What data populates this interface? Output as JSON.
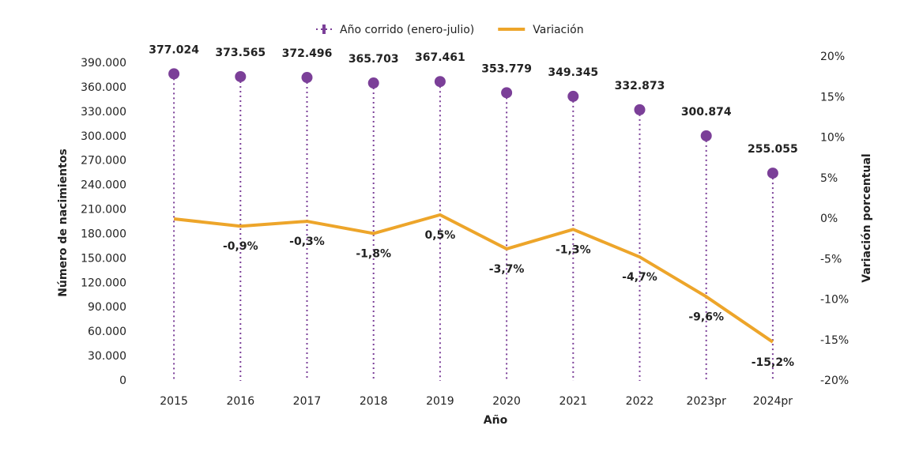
{
  "chart_data": {
    "type": "combo",
    "x_label": "Año",
    "y_label": "Número de nacimientos",
    "y2_label": "Variación porcentual",
    "legend": "top",
    "categories": [
      "2015",
      "2016",
      "2017",
      "2018",
      "2019",
      "2020",
      "2021",
      "2022",
      "2023pr",
      "2024pr"
    ],
    "series": [
      {
        "name": "Año corrido (enero-julio)",
        "type": "lollipop",
        "color": "#7b3f98",
        "values": [
          377024,
          373565,
          372496,
          365703,
          367461,
          353779,
          349345,
          332873,
          300874,
          255055
        ],
        "value_labels": [
          "377.024",
          "373.565",
          "372.496",
          "365.703",
          "367.461",
          "353.779",
          "349.345",
          "332.873",
          "300.874",
          "255.055"
        ]
      },
      {
        "name": "Variación",
        "type": "line",
        "axis": "y2",
        "color": "#eda52a",
        "values": [
          0,
          -0.9,
          -0.3,
          -1.8,
          0.5,
          -3.7,
          -1.3,
          -4.7,
          -9.6,
          -15.2
        ],
        "value_labels": [
          null,
          "-0,9%",
          "-0,3%",
          "-1,8%",
          "0,5%",
          "-3,7%",
          "-1,3%",
          "-4,7%",
          "-9,6%",
          "-15,2%"
        ]
      }
    ],
    "ylim": [
      0,
      390000
    ],
    "yticks": [
      0,
      {
        "value": 30000,
        "label": "30.000"
      },
      {
        "value": 60000,
        "label": "60.000"
      },
      {
        "value": 90000,
        "label": "90.000"
      },
      {
        "value": 120000,
        "label": "120.000"
      },
      {
        "value": 150000,
        "label": "150.000"
      },
      {
        "value": 180000,
        "label": "180.000"
      },
      {
        "value": 210000,
        "label": "210.000"
      },
      {
        "value": 240000,
        "label": "240.000"
      },
      {
        "value": 270000,
        "label": "270.000"
      },
      {
        "value": 300000,
        "label": "300.000"
      },
      {
        "value": 330000,
        "label": "330.000"
      },
      {
        "value": 360000,
        "label": "360.000"
      },
      {
        "value": 390000,
        "label": "390.000"
      }
    ],
    "y2lim": [
      -20,
      20
    ],
    "y2ticks": [
      {
        "value": -20,
        "label": "-20%"
      },
      {
        "value": -15,
        "label": "-15%"
      },
      {
        "value": -10,
        "label": "-10%"
      },
      {
        "value": -5,
        "label": "-5%"
      },
      {
        "value": 0,
        "label": "0%"
      },
      {
        "value": 5,
        "label": "5%"
      },
      {
        "value": 10,
        "label": "10%"
      },
      {
        "value": 15,
        "label": "15%"
      },
      {
        "value": 20,
        "label": "20%"
      }
    ]
  }
}
